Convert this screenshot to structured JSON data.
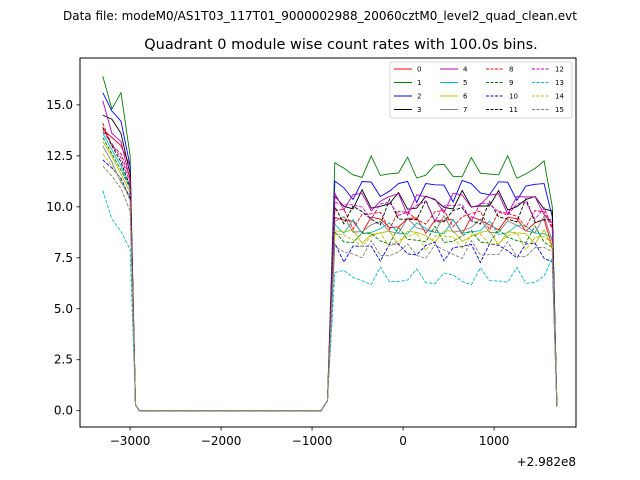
{
  "suptitle": "Data file: modeM0/AS1T03_117T01_9000002988_20060cztM0_level2_quad_clean.evt",
  "chart_data": {
    "type": "line",
    "title": "Quadrant 0 module wise count rates with 100.0s bins.",
    "xlabel": "",
    "ylabel": "",
    "x_offset_label": "+2.982e8",
    "xlim": [
      -3550,
      1900
    ],
    "ylim": [
      -0.8,
      17.3
    ],
    "xticks": [
      -3000,
      -2000,
      -1000,
      0,
      1000
    ],
    "xtick_labels": [
      "−3000",
      "−2000",
      "−1000",
      "0",
      "1000"
    ],
    "yticks": [
      0.0,
      2.5,
      5.0,
      7.5,
      10.0,
      12.5,
      15.0
    ],
    "ytick_labels": [
      "0.0",
      "2.5",
      "5.0",
      "7.5",
      "10.0",
      "12.5",
      "15.0"
    ],
    "legend_location": "top-right",
    "series": [
      {
        "name": "0",
        "color": "#ff0000",
        "dash": "solid",
        "early": [
          13.8,
          13.4,
          13.0,
          12.0
        ],
        "level": 9.2,
        "amp": 0.35,
        "end": 8.0
      },
      {
        "name": "1",
        "color": "#008000",
        "dash": "solid",
        "early": [
          16.4,
          14.8,
          15.6,
          12.5
        ],
        "level": 11.8,
        "amp": 0.45,
        "end": 10.0
      },
      {
        "name": "2",
        "color": "#0000ff",
        "dash": "solid",
        "early": [
          15.6,
          14.7,
          14.2,
          12.0
        ],
        "level": 10.9,
        "amp": 0.45,
        "end": 9.5
      },
      {
        "name": "3",
        "color": "#000000",
        "dash": "solid",
        "early": [
          14.5,
          14.3,
          13.6,
          11.6
        ],
        "level": 10.2,
        "amp": 0.4,
        "end": 9.8
      },
      {
        "name": "4",
        "color": "#bf00bf",
        "dash": "solid",
        "early": [
          15.2,
          13.6,
          13.2,
          11.3
        ],
        "level": 10.3,
        "amp": 0.45,
        "end": 9.2
      },
      {
        "name": "5",
        "color": "#00bfbf",
        "dash": "solid",
        "early": [
          13.6,
          12.8,
          12.0,
          10.9
        ],
        "level": 8.9,
        "amp": 0.3,
        "end": 8.5
      },
      {
        "name": "6",
        "color": "#bfbf00",
        "dash": "solid",
        "early": [
          13.2,
          12.5,
          11.6,
          10.7
        ],
        "level": 8.6,
        "amp": 0.3,
        "end": 8.0
      },
      {
        "name": "7",
        "color": "#808080",
        "dash": "solid",
        "early": [
          13.0,
          12.2,
          11.2,
          10.5
        ],
        "level": 9.0,
        "amp": 0.35,
        "end": 8.3
      },
      {
        "name": "8",
        "color": "#ff0000",
        "dash": "dashed",
        "early": [
          14.1,
          13.0,
          12.6,
          11.4
        ],
        "level": 9.5,
        "amp": 0.4,
        "end": 8.9
      },
      {
        "name": "9",
        "color": "#008000",
        "dash": "dashed",
        "early": [
          13.4,
          12.6,
          11.8,
          10.9
        ],
        "level": 8.5,
        "amp": 0.35,
        "end": 8.0
      },
      {
        "name": "10",
        "color": "#0000ff",
        "dash": "dashed",
        "early": [
          12.3,
          11.9,
          11.4,
          10.4
        ],
        "level": 7.9,
        "amp": 0.4,
        "end": 7.3
      },
      {
        "name": "11",
        "color": "#000000",
        "dash": "dashed",
        "early": [
          13.9,
          13.0,
          12.2,
          11.0
        ],
        "level": 9.6,
        "amp": 0.5,
        "end": 9.4
      },
      {
        "name": "12",
        "color": "#bf00bf",
        "dash": "dashed",
        "early": [
          13.7,
          13.1,
          12.4,
          11.2
        ],
        "level": 9.9,
        "amp": 0.4,
        "end": 9.0
      },
      {
        "name": "13",
        "color": "#00bfbf",
        "dash": "dashed",
        "early": [
          10.8,
          9.4,
          8.8,
          7.9
        ],
        "level": 6.5,
        "amp": 0.35,
        "end": 7.5
      },
      {
        "name": "14",
        "color": "#bfbf00",
        "dash": "dashed",
        "early": [
          12.6,
          12.0,
          11.3,
          10.3
        ],
        "level": 8.4,
        "amp": 0.35,
        "end": 8.2
      },
      {
        "name": "15",
        "color": "#808080",
        "dash": "dashed",
        "early": [
          12.0,
          11.5,
          10.9,
          9.8
        ],
        "level": 7.8,
        "amp": 0.35,
        "end": 7.8
      }
    ]
  }
}
